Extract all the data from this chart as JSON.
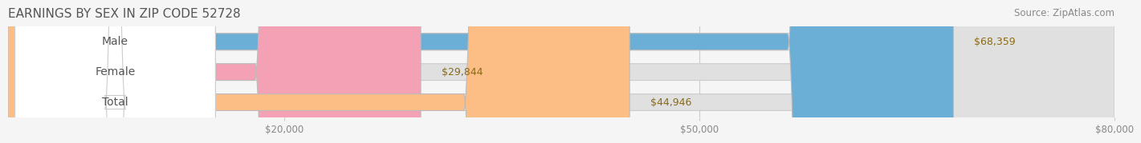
{
  "title": "EARNINGS BY SEX IN ZIP CODE 52728",
  "source": "Source: ZipAtlas.com",
  "categories": [
    "Male",
    "Female",
    "Total"
  ],
  "values": [
    68359,
    29844,
    44946
  ],
  "bar_colors": [
    "#6baed6",
    "#f4a0b5",
    "#fdbe85"
  ],
  "label_colors": [
    "#8B6914",
    "#8B6914",
    "#8B6914"
  ],
  "bar_bg_color": "#e8e8e8",
  "bar_border_color": "#cccccc",
  "xlim": [
    0,
    80000
  ],
  "xticks": [
    20000,
    50000,
    80000
  ],
  "xtick_labels": [
    "$20,000",
    "$50,000",
    "$80,000"
  ],
  "background_color": "#f5f5f5",
  "bar_height": 0.55,
  "title_fontsize": 11,
  "label_fontsize": 10,
  "value_fontsize": 9,
  "source_fontsize": 8.5
}
